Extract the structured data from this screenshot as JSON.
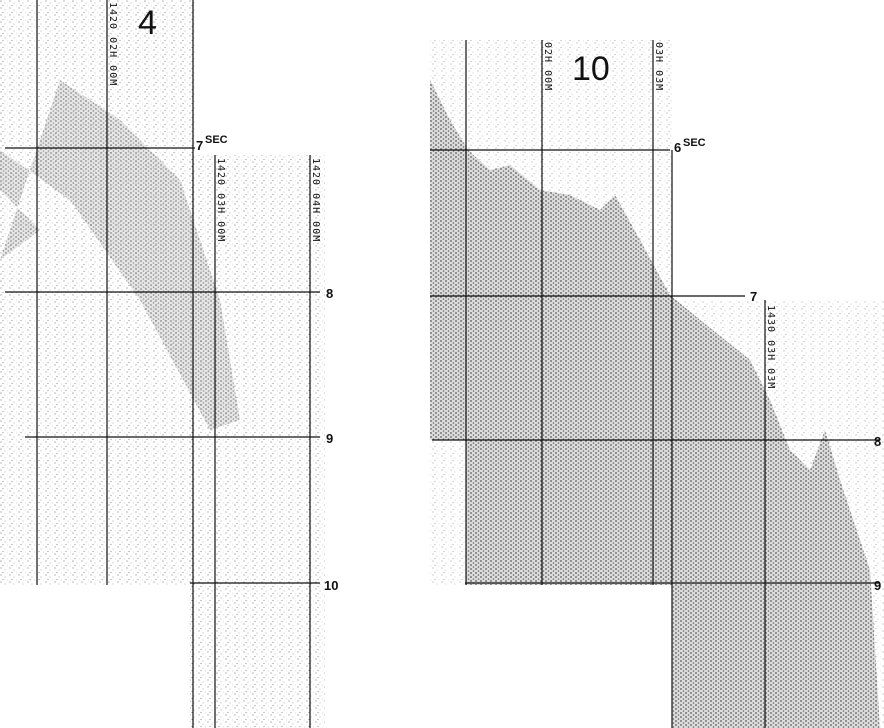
{
  "panels": [
    {
      "title": "4",
      "time_marks": [
        "7",
        "8",
        "9",
        "10"
      ],
      "time_unit": "SEC",
      "trace_labels": [
        "1420 02H 00M",
        "1420 03H 00M",
        "1420 04H 00M"
      ]
    },
    {
      "title": "10",
      "time_marks": [
        "6",
        "7",
        "8",
        "9"
      ],
      "time_unit": "SEC",
      "trace_labels": [
        "02H 00M",
        "03H 03M",
        "1430 03H 03M"
      ]
    }
  ]
}
